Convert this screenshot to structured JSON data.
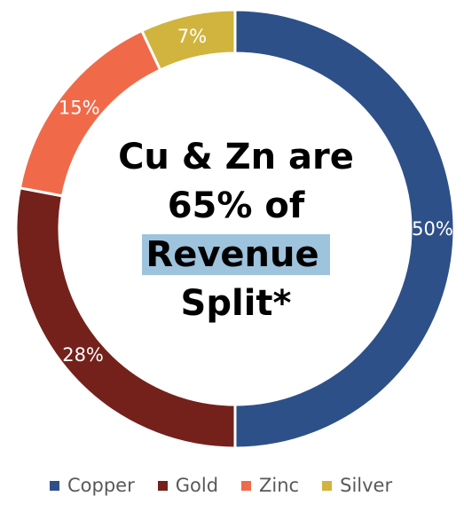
{
  "chart_data": {
    "type": "pie",
    "variant": "donut",
    "categories": [
      "Copper",
      "Gold",
      "Zinc",
      "Silver"
    ],
    "values": [
      50,
      28,
      15,
      7
    ],
    "labels": [
      "50%",
      "28%",
      "15%",
      "7%"
    ],
    "colors": [
      "#2e5089",
      "#74211c",
      "#f06a4a",
      "#d1b43e"
    ],
    "center_title": [
      "Cu & Zn are",
      "65% of",
      "Revenue",
      "Split*"
    ],
    "highlight_color": "#9ec3dc",
    "legend": {
      "position": "bottom",
      "items": [
        "Copper",
        "Gold",
        "Zinc",
        "Silver"
      ]
    }
  }
}
